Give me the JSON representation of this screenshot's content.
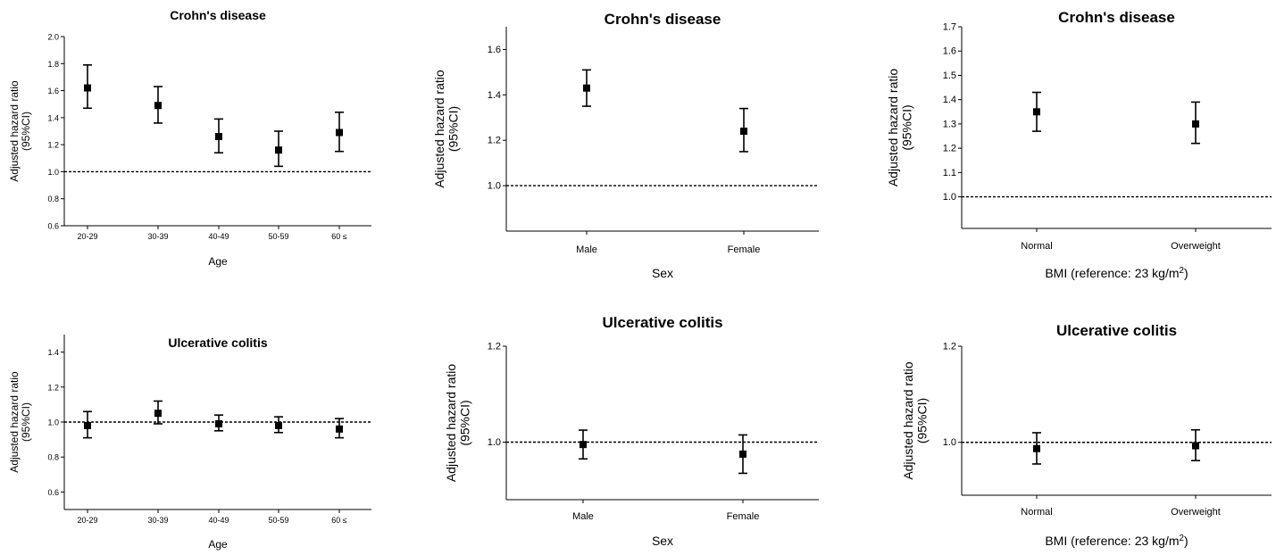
{
  "chart_data": [
    {
      "type": "scatter",
      "title": "Crohn's disease",
      "xlabel": "Age",
      "ylabel": "Adjusted hazard ratio (95%CI)",
      "categories": [
        "20-29",
        "30-39",
        "40-49",
        "50-59",
        "60 ≤"
      ],
      "points": [
        {
          "estimate": 1.62,
          "lower": 1.47,
          "upper": 1.79
        },
        {
          "estimate": 1.49,
          "lower": 1.36,
          "upper": 1.63
        },
        {
          "estimate": 1.26,
          "lower": 1.14,
          "upper": 1.39
        },
        {
          "estimate": 1.16,
          "lower": 1.04,
          "upper": 1.3
        },
        {
          "estimate": 1.29,
          "lower": 1.15,
          "upper": 1.44
        }
      ],
      "reference_line": 1.0,
      "ylim": [
        0.6,
        2.0
      ],
      "yticks": [
        "0.6",
        "0.8",
        "1.0",
        "1.2",
        "1.4",
        "1.6",
        "1.8",
        "2.0"
      ],
      "grid": false
    },
    {
      "type": "scatter",
      "title": "Crohn's disease",
      "xlabel": "Sex",
      "ylabel": "Adjusted hazard ratio (95%CI)",
      "categories": [
        "Male",
        "Female"
      ],
      "points": [
        {
          "estimate": 1.43,
          "lower": 1.35,
          "upper": 1.51
        },
        {
          "estimate": 1.24,
          "lower": 1.15,
          "upper": 1.34
        }
      ],
      "reference_line": 1.0,
      "ylim": [
        0.8,
        1.7
      ],
      "yticks": [
        "1.0",
        "1.2",
        "1.4",
        "1.6"
      ],
      "grid": false
    },
    {
      "type": "scatter",
      "title": "Crohn's disease",
      "xlabel": "BMI (reference: 23 kg/m",
      "xlabel_sup": "2",
      "xlabel_end": ")",
      "ylabel": "Adjusted hazard ratio (95%CI)",
      "categories": [
        "Normal",
        "Overweight"
      ],
      "points": [
        {
          "estimate": 1.35,
          "lower": 1.27,
          "upper": 1.43
        },
        {
          "estimate": 1.3,
          "lower": 1.22,
          "upper": 1.39
        }
      ],
      "reference_line": 1.0,
      "ylim": [
        0.87,
        1.7
      ],
      "yticks": [
        "1.0",
        "1.1",
        "1.2",
        "1.3",
        "1.4",
        "1.5",
        "1.6",
        "1.7"
      ],
      "grid": false
    },
    {
      "type": "scatter",
      "title": "Ulcerative colitis",
      "xlabel": "Age",
      "ylabel": "Adjusted hazard ratio (95%CI)",
      "categories": [
        "20-29",
        "30-39",
        "40-49",
        "50-59",
        "60 ≤"
      ],
      "points": [
        {
          "estimate": 0.98,
          "lower": 0.91,
          "upper": 1.06
        },
        {
          "estimate": 1.05,
          "lower": 0.99,
          "upper": 1.12
        },
        {
          "estimate": 0.99,
          "lower": 0.95,
          "upper": 1.04
        },
        {
          "estimate": 0.98,
          "lower": 0.94,
          "upper": 1.03
        },
        {
          "estimate": 0.96,
          "lower": 0.91,
          "upper": 1.02
        }
      ],
      "reference_line": 1.0,
      "ylim": [
        0.5,
        1.5
      ],
      "yticks": [
        "0.6",
        "0.8",
        "1.0",
        "1.2",
        "1.4"
      ],
      "grid": false
    },
    {
      "type": "scatter",
      "title": "Ulcerative colitis",
      "xlabel": "Sex",
      "ylabel": "Adjusted hazard ratio (95%CI)",
      "categories": [
        "Male",
        "Female"
      ],
      "points": [
        {
          "estimate": 0.995,
          "lower": 0.965,
          "upper": 1.025
        },
        {
          "estimate": 0.975,
          "lower": 0.935,
          "upper": 1.015
        }
      ],
      "reference_line": 1.0,
      "ylim": [
        0.88,
        1.2
      ],
      "yticks": [
        "1.0",
        "1.2"
      ],
      "grid": false
    },
    {
      "type": "scatter",
      "title": "Ulcerative colitis",
      "xlabel": "BMI (reference: 23 kg/m",
      "xlabel_sup": "2",
      "xlabel_end": ")",
      "ylabel": "Adjusted hazard ratio (95%CI)",
      "categories": [
        "Normal",
        "Overweight"
      ],
      "points": [
        {
          "estimate": 0.987,
          "lower": 0.955,
          "upper": 1.02
        },
        {
          "estimate": 0.993,
          "lower": 0.962,
          "upper": 1.026
        }
      ],
      "reference_line": 1.0,
      "ylim": [
        0.89,
        1.2
      ],
      "yticks": [
        "1.0",
        "1.2"
      ],
      "grid": false
    }
  ]
}
